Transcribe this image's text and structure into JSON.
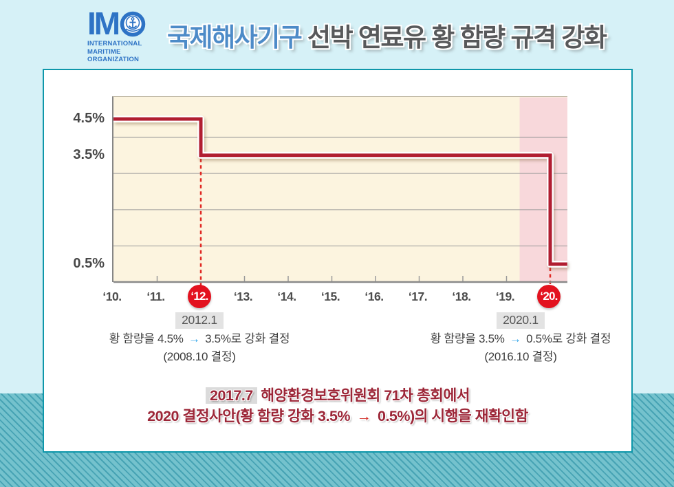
{
  "header": {
    "logo": {
      "wordmark": "IMO",
      "im": "IM",
      "org_lines": [
        "INTERNATIONAL",
        "MARITIME",
        "ORGANIZATION"
      ]
    },
    "title_blue": "국제해사기구",
    "title_dark": " 선박 연료유 황 함량 규격 강화"
  },
  "chart_data": {
    "type": "line",
    "subtype": "step",
    "title": "국제해사기구 선박 연료유 황 함량 규격 강화",
    "xlabel": "",
    "ylabel": "",
    "xlim": [
      2010,
      2020.4
    ],
    "ylim": [
      0,
      5
    ],
    "xticks": [
      "‘10.",
      "‘11.",
      "‘12.",
      "‘13.",
      "‘14.",
      "‘15.",
      "‘16.",
      "‘17.",
      "‘18.",
      "‘19.",
      "‘20."
    ],
    "y_axis_labels": [
      {
        "text": "4.5%",
        "pct": 4.5
      },
      {
        "text": "3.5%",
        "pct": 3.5
      },
      {
        "text": "0.5%",
        "pct": 0.5
      }
    ],
    "gridlines_pct": [
      4.0,
      3.0,
      2.0,
      1.0
    ],
    "levels": [
      {
        "from": 2010,
        "to": 2012,
        "pct": 4.5
      },
      {
        "from": 2012,
        "to": 2020,
        "pct": 3.5
      },
      {
        "from": 2020,
        "to": 2020.39,
        "pct": 0.5
      }
    ],
    "decisions": [
      {
        "year": 2012,
        "new_pct": 3.5,
        "tick_index": 2,
        "badge": "‘12."
      },
      {
        "year": 2020,
        "new_pct": 0.5,
        "tick_index": 10,
        "badge": "‘20."
      }
    ],
    "future_band": {
      "from_year": 2019.3,
      "to_year": 2020.4
    },
    "colors": {
      "line": "#b11e31",
      "line_outline": "#ffffff",
      "dash": "#e02823",
      "badge": "#e3121f",
      "plot_bg": "#fcf4df",
      "future_band": "#f8d8db",
      "gridline": "#9b9b9b",
      "axis": "#898989"
    }
  },
  "annotations": {
    "left": {
      "date": "2012.1",
      "line1_pre": "황 함량을 4.5% ",
      "arrow": "→",
      "line1_post": " 3.5%로 강화 결정",
      "line2": "(2008.10 결정)"
    },
    "right": {
      "date": "2020.1",
      "line1_pre": "황 함량을 3.5% ",
      "arrow": "→",
      "line1_post": " 0.5%로 강화 결정",
      "line2": "(2016.10 결정)"
    }
  },
  "summary": {
    "highlight": "2017.7",
    "line1_rest": " 해양환경보호위원회 71차 총회에서",
    "line2_pre": "2020 결정사안(황 함량 강화 3.5% ",
    "arrow": "→",
    "line2_post": " 0.5%)의 시행을 재확인함"
  },
  "palette": {
    "page_bg": "#d6f1f7",
    "stripe_base": "#74c2cd",
    "stripe_dark": "#47a3b4",
    "card_border": "#0e97aa",
    "title_blue": "#4d8bc8",
    "title_dark": "#58595b",
    "logo_blue": "#2e73c5",
    "summary_red": "#9c2637"
  }
}
